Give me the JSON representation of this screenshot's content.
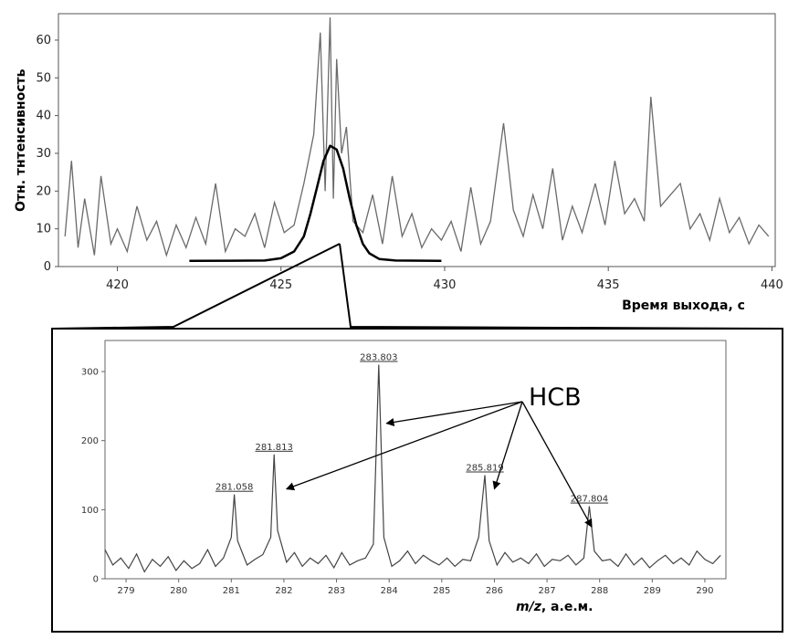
{
  "chart_data": [
    {
      "type": "line",
      "xlabel": "Время выхода,  с",
      "ylabel": "Отн. тнтенсивность",
      "xlim": [
        418.2,
        440.1
      ],
      "ylim": [
        0,
        67
      ],
      "xticks": [
        420,
        425,
        430,
        435,
        440
      ],
      "yticks": [
        0,
        10,
        20,
        30,
        40,
        50,
        60
      ],
      "grid": false,
      "series": [
        {
          "role": "noisy chromatogram trace",
          "x": [
            418.4,
            418.6,
            418.8,
            419.0,
            419.3,
            419.5,
            419.8,
            420.0,
            420.3,
            420.6,
            420.9,
            421.2,
            421.5,
            421.8,
            422.1,
            422.4,
            422.7,
            423.0,
            423.3,
            423.6,
            423.9,
            424.2,
            424.5,
            424.8,
            425.1,
            425.4,
            425.7,
            426.0,
            426.2,
            426.35,
            426.5,
            426.6,
            426.7,
            426.85,
            427.0,
            427.2,
            427.5,
            427.8,
            428.1,
            428.4,
            428.7,
            429.0,
            429.3,
            429.6,
            429.9,
            430.2,
            430.5,
            430.8,
            431.1,
            431.4,
            431.8,
            432.1,
            432.4,
            432.7,
            433.0,
            433.3,
            433.6,
            433.9,
            434.2,
            434.6,
            434.9,
            435.2,
            435.5,
            435.8,
            436.1,
            436.3,
            436.6,
            436.9,
            437.2,
            437.5,
            437.8,
            438.1,
            438.4,
            438.7,
            439.0,
            439.3,
            439.6,
            439.9
          ],
          "y": [
            8,
            28,
            5,
            18,
            3,
            24,
            6,
            10,
            4,
            16,
            7,
            12,
            3,
            11,
            5,
            13,
            6,
            22,
            4,
            10,
            8,
            14,
            5,
            17,
            9,
            11,
            22,
            35,
            62,
            20,
            66,
            18,
            55,
            30,
            37,
            12,
            9,
            19,
            6,
            24,
            8,
            14,
            5,
            10,
            7,
            12,
            4,
            21,
            6,
            12,
            38,
            15,
            8,
            19,
            10,
            26,
            7,
            16,
            9,
            22,
            11,
            28,
            14,
            18,
            12,
            45,
            16,
            19,
            22,
            10,
            14,
            7,
            18,
            9,
            13,
            6,
            11,
            8
          ]
        },
        {
          "role": "Gaussian fit curve",
          "x": [
            422.2,
            424.5,
            425.0,
            425.4,
            425.7,
            425.9,
            426.1,
            426.3,
            426.5,
            426.7,
            426.9,
            427.1,
            427.3,
            427.5,
            427.7,
            428.0,
            428.5,
            429.9
          ],
          "y": [
            1.5,
            1.6,
            2.2,
            4,
            8,
            14,
            21,
            28,
            32,
            31,
            26,
            18,
            11,
            6,
            3.5,
            2,
            1.6,
            1.5
          ]
        }
      ]
    },
    {
      "type": "line",
      "xlabel": "m/z,  а.е.м.",
      "xlim": [
        278.6,
        290.4
      ],
      "ylim": [
        0,
        345
      ],
      "xticks": [
        279,
        280,
        281,
        282,
        283,
        284,
        285,
        286,
        287,
        288,
        289,
        290
      ],
      "yticks": [
        0,
        100,
        200,
        300
      ],
      "grid": false,
      "series": [
        {
          "role": "mass spectrum",
          "x": [
            278.6,
            278.75,
            278.9,
            279.05,
            279.2,
            279.35,
            279.5,
            279.65,
            279.8,
            279.95,
            280.1,
            280.25,
            280.4,
            280.55,
            280.7,
            280.85,
            281.0,
            281.058,
            281.12,
            281.3,
            281.45,
            281.6,
            281.75,
            281.813,
            281.88,
            282.05,
            282.2,
            282.35,
            282.5,
            282.65,
            282.8,
            282.95,
            283.1,
            283.25,
            283.4,
            283.55,
            283.7,
            283.803,
            283.9,
            284.05,
            284.2,
            284.35,
            284.5,
            284.65,
            284.8,
            284.95,
            285.1,
            285.25,
            285.4,
            285.55,
            285.7,
            285.819,
            285.9,
            286.05,
            286.2,
            286.35,
            286.5,
            286.65,
            286.8,
            286.95,
            287.1,
            287.25,
            287.4,
            287.55,
            287.7,
            287.804,
            287.9,
            288.05,
            288.2,
            288.35,
            288.5,
            288.65,
            288.8,
            288.95,
            289.1,
            289.25,
            289.4,
            289.55,
            289.7,
            289.85,
            290.0,
            290.15,
            290.3
          ],
          "y": [
            42,
            20,
            30,
            15,
            36,
            10,
            28,
            18,
            32,
            12,
            26,
            15,
            22,
            42,
            18,
            30,
            60,
            122,
            55,
            20,
            28,
            35,
            60,
            180,
            70,
            24,
            38,
            18,
            30,
            22,
            34,
            16,
            38,
            20,
            26,
            30,
            50,
            310,
            60,
            18,
            26,
            40,
            22,
            34,
            26,
            20,
            30,
            18,
            28,
            26,
            60,
            150,
            55,
            20,
            38,
            24,
            30,
            22,
            36,
            18,
            28,
            26,
            34,
            20,
            30,
            105,
            40,
            26,
            28,
            18,
            36,
            20,
            30,
            16,
            26,
            34,
            22,
            30,
            20,
            40,
            28,
            22,
            34
          ]
        }
      ],
      "peak_labels": [
        {
          "x": 281.058,
          "y": 122,
          "label": "281.058"
        },
        {
          "x": 281.813,
          "y": 180,
          "label": "281.813"
        },
        {
          "x": 283.803,
          "y": 310,
          "label": "283.803"
        },
        {
          "x": 285.819,
          "y": 150,
          "label": "285.819"
        },
        {
          "x": 287.804,
          "y": 105,
          "label": "287.804"
        }
      ],
      "annotation": {
        "text": "HCB",
        "arrow_targets": [
          {
            "x": 283.95,
            "y": 225
          },
          {
            "x": 282.05,
            "y": 130
          },
          {
            "x": 286.0,
            "y": 130
          },
          {
            "x": 287.85,
            "y": 75
          }
        ]
      }
    }
  ]
}
